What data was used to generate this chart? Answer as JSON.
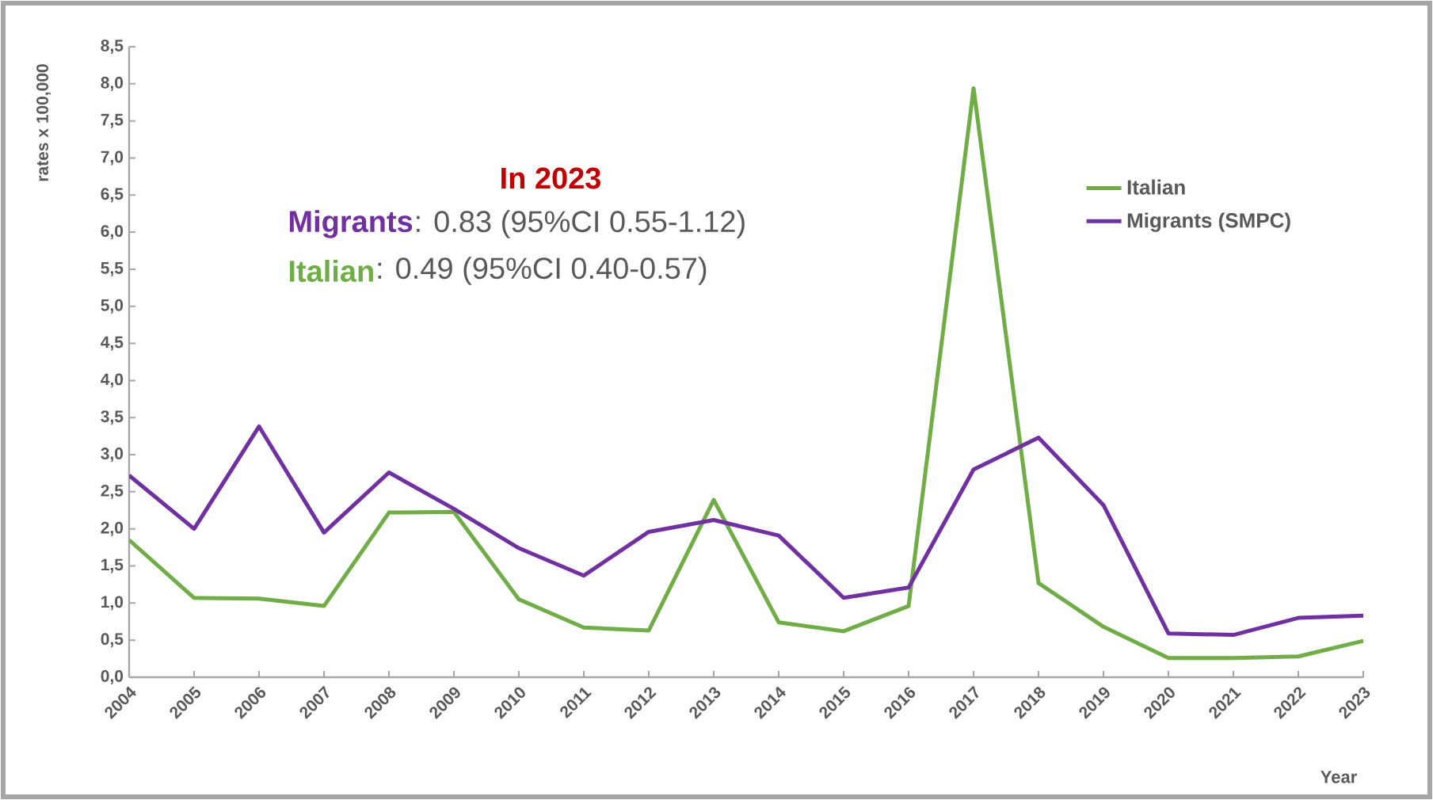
{
  "chart_data": {
    "type": "line",
    "ylabel": "rates x 100,000",
    "xlabel": "Year",
    "categories": [
      "2004",
      "2005",
      "2006",
      "2007",
      "2008",
      "2009",
      "2010",
      "2011",
      "2012",
      "2013",
      "2014",
      "2015",
      "2016",
      "2017",
      "2018",
      "2019",
      "2020",
      "2021",
      "2022",
      "2023"
    ],
    "series": [
      {
        "name": "Italian",
        "color": "#70ad47",
        "values": [
          1.85,
          1.07,
          1.06,
          0.96,
          2.22,
          2.23,
          1.05,
          0.67,
          0.63,
          2.39,
          0.74,
          0.62,
          0.96,
          7.94,
          1.27,
          0.68,
          0.26,
          0.26,
          0.28,
          0.49
        ]
      },
      {
        "name": "Migrants (SMPC)",
        "color": "#7030a0",
        "values": [
          2.72,
          2.0,
          3.38,
          1.95,
          2.76,
          2.27,
          1.74,
          1.37,
          1.96,
          2.12,
          1.91,
          1.07,
          1.21,
          2.8,
          3.23,
          2.32,
          0.59,
          0.57,
          0.8,
          0.83
        ]
      }
    ],
    "ylim": [
      0,
      8.5
    ],
    "yticks": [
      {
        "value": 0,
        "label": "0,0"
      },
      {
        "value": 0.5,
        "label": "0,5"
      },
      {
        "value": 1,
        "label": "1,0"
      },
      {
        "value": 1.5,
        "label": "1,5"
      },
      {
        "value": 2,
        "label": "2,0"
      },
      {
        "value": 2.5,
        "label": "2,5"
      },
      {
        "value": 3,
        "label": "3,0"
      },
      {
        "value": 3.5,
        "label": "3,5"
      },
      {
        "value": 4,
        "label": "4,0"
      },
      {
        "value": 4.5,
        "label": "4,5"
      },
      {
        "value": 5,
        "label": "5,0"
      },
      {
        "value": 5.5,
        "label": "5,5"
      },
      {
        "value": 6,
        "label": "6,0"
      },
      {
        "value": 6.5,
        "label": "6,5"
      },
      {
        "value": 7,
        "label": "7,0"
      },
      {
        "value": 7.5,
        "label": "7,5"
      },
      {
        "value": 8,
        "label": "8,0"
      },
      {
        "value": 8.5,
        "label": "8,5"
      }
    ],
    "annotations": [
      "In 2023",
      "Migrants",
      ": 0.83 (95%CI 0.55-1.12)",
      "Italian",
      ": 0.49 (95%CI 0.40-0.57)"
    ],
    "legend": "right",
    "grid": false,
    "marker": "none",
    "line_style": "solid"
  }
}
